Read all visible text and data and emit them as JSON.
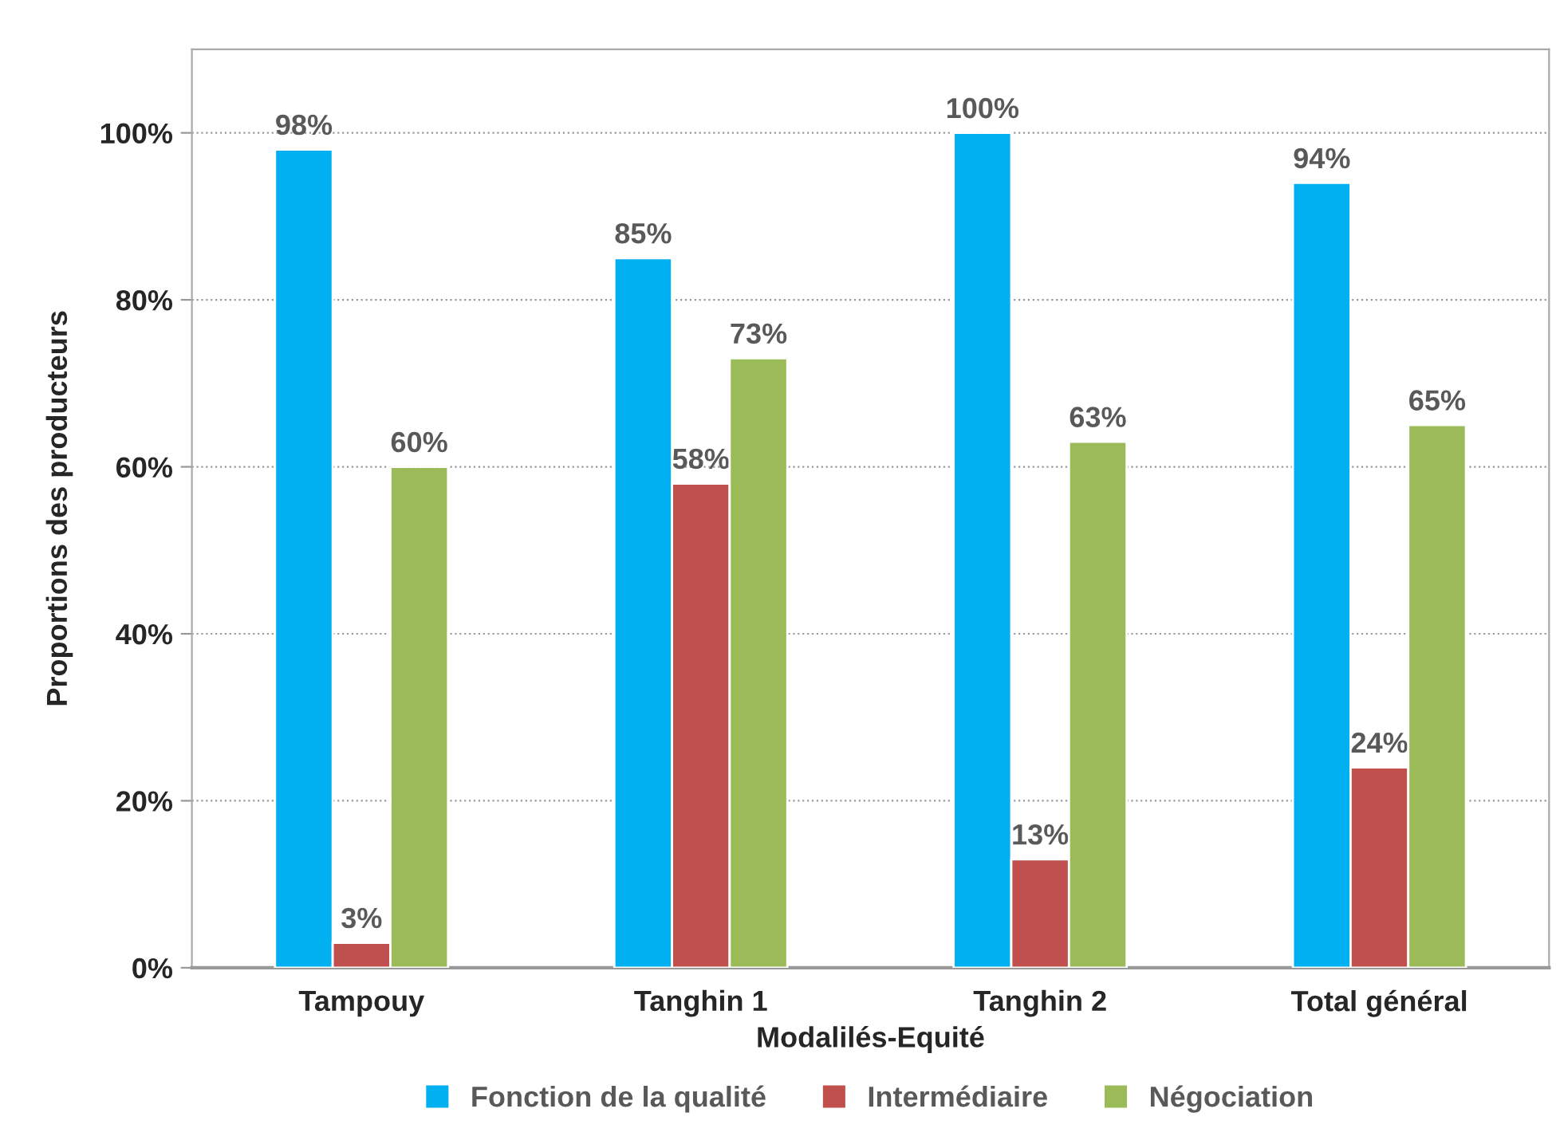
{
  "chart_data": {
    "type": "bar",
    "xlabel": "Modalilés-Equité",
    "ylabel": "Proportions des producteurs",
    "categories": [
      "Tampouy",
      "Tanghin 1",
      "Tanghin 2",
      "Total général"
    ],
    "series": [
      {
        "name": "Fonction de la qualité",
        "color": "#00b0f0",
        "values": [
          98,
          85,
          100,
          94
        ],
        "value_labels": [
          "98%",
          "85%",
          "100%",
          "94%"
        ]
      },
      {
        "name": "Intermédiaire",
        "color": "#c0504d",
        "values": [
          3,
          58,
          13,
          24
        ],
        "value_labels": [
          "3%",
          "58%",
          "13%",
          "24%"
        ]
      },
      {
        "name": "Négociation",
        "color": "#9bbb59",
        "values": [
          60,
          73,
          63,
          65
        ],
        "value_labels": [
          "60%",
          "73%",
          "63%",
          "65%"
        ]
      }
    ],
    "ylim": [
      0,
      110
    ],
    "yticks": [
      {
        "value": 0,
        "label": "0%"
      },
      {
        "value": 20,
        "label": "20%"
      },
      {
        "value": 40,
        "label": "40%"
      },
      {
        "value": 60,
        "label": "60%"
      },
      {
        "value": 80,
        "label": "80%"
      },
      {
        "value": 100,
        "label": "100%"
      }
    ],
    "grid": "y",
    "legend": "bottom"
  }
}
